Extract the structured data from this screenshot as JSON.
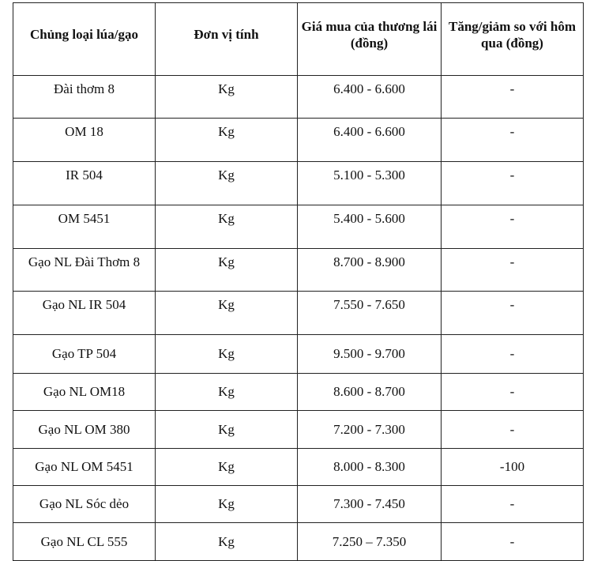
{
  "headers": [
    "Chủng loại lúa/gạo",
    "Đơn vị tính",
    "Giá mua của thương lái (đồng)",
    "Tăng/giảm so với hôm qua (đồng)"
  ],
  "rows": [
    [
      "Đài thơm 8",
      "Kg",
      "6.400 - 6.600",
      "-"
    ],
    [
      "OM 18",
      "Kg",
      "6.400 - 6.600",
      "-"
    ],
    [
      "IR 504",
      "Kg",
      "5.100 - 5.300",
      "-"
    ],
    [
      "OM 5451",
      "Kg",
      "5.400 - 5.600",
      "-"
    ],
    [
      "Gạo NL Đài Thơm 8",
      "Kg",
      "8.700 - 8.900",
      "-"
    ],
    [
      "Gạo NL IR 504",
      "Kg",
      "7.550 - 7.650",
      "-"
    ],
    [
      "Gạo TP 504",
      "Kg",
      "9.500 - 9.700",
      "-"
    ],
    [
      "Gạo NL OM18",
      "Kg",
      "8.600 - 8.700",
      "-"
    ],
    [
      "Gạo NL OM 380",
      "Kg",
      "7.200 - 7.300",
      "-"
    ],
    [
      "Gạo NL OM 5451",
      "Kg",
      "8.000 - 8.300",
      "-100"
    ],
    [
      "Gạo NL Sóc dẻo",
      "Kg",
      "7.300 - 7.450",
      "-"
    ],
    [
      "Gạo NL CL 555",
      "Kg",
      "7.250 – 7.350",
      "-"
    ]
  ]
}
